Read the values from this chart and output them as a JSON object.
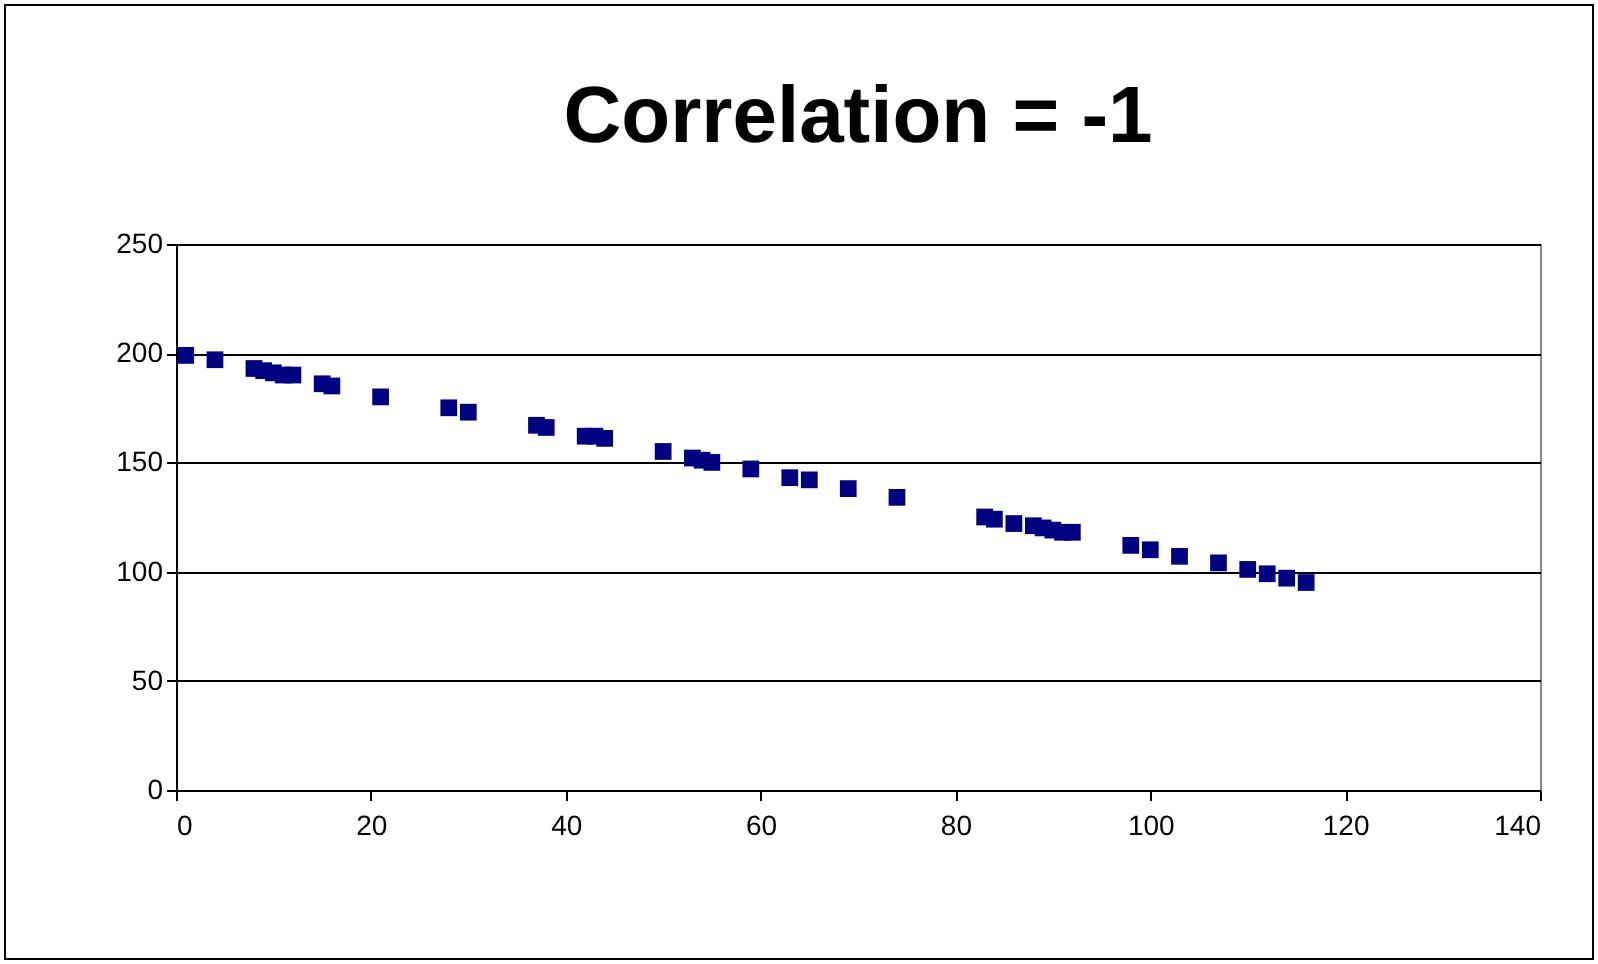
{
  "chart_data": {
    "type": "scatter",
    "title": "Correlation = -1",
    "x": [
      1,
      4,
      8,
      9,
      10,
      11,
      12,
      15,
      16,
      21,
      28,
      30,
      37,
      38,
      42,
      43,
      44,
      50,
      53,
      54,
      55,
      59,
      63,
      65,
      69,
      74,
      83,
      84,
      86,
      88,
      89,
      90,
      91,
      92,
      98,
      100,
      103,
      107,
      110,
      112,
      114,
      116
    ],
    "series": [
      {
        "color": "#000080",
        "values": [
          199,
          197,
          193,
          192,
          191,
          190,
          190,
          186,
          185,
          180,
          175,
          173,
          167,
          166,
          162,
          162,
          161,
          155,
          152,
          151,
          150,
          147,
          143,
          142,
          138,
          134,
          125,
          124,
          122,
          121,
          120,
          119,
          118,
          118,
          112,
          110,
          107,
          104,
          101,
          99,
          97,
          95
        ]
      }
    ],
    "xlim": [
      0,
      140
    ],
    "xticks": [
      0,
      20,
      40,
      60,
      80,
      100,
      120,
      140
    ],
    "ylim": [
      0,
      250
    ],
    "yticks": [
      0,
      50,
      100,
      150,
      200,
      250
    ],
    "grid": "y",
    "marker": "square"
  }
}
